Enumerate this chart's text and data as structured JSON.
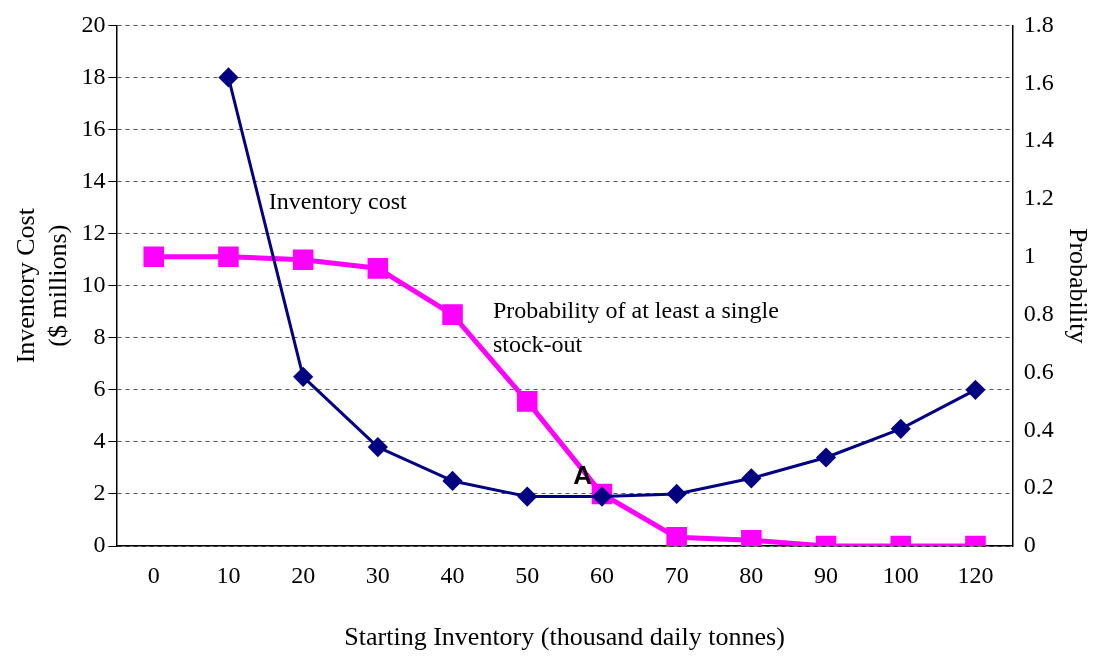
{
  "chart_data": {
    "type": "line",
    "xlabel": "Starting Inventory (thousand daily tonnes)",
    "ylabel": "Inventory Cost\n($ millions)",
    "y2label": "Probability",
    "categories": [
      "0",
      "10",
      "20",
      "30",
      "40",
      "50",
      "60",
      "70",
      "80",
      "90",
      "100",
      "120"
    ],
    "series": [
      {
        "name": "Inventory cost",
        "color": "#000080",
        "marker": "diamond",
        "values": [
          null,
          18,
          6.5,
          3.8,
          2.5,
          1.9,
          1.9,
          2.0,
          2.6,
          3.4,
          4.5,
          6.0
        ]
      },
      {
        "name": "Probability of at least a single stock-out",
        "color": "#ff00ff",
        "marker": "square",
        "axis": "y2",
        "values": [
          1,
          1,
          0.99,
          0.96,
          0.8,
          0.5,
          0.18,
          0.03,
          0.02,
          0,
          0,
          0
        ]
      }
    ],
    "ylim": [
      0,
      20
    ],
    "yticks": [
      0,
      2,
      4,
      6,
      8,
      10,
      12,
      14,
      16,
      18,
      20
    ],
    "y2lim": [
      0,
      1.8
    ],
    "y2ticks": [
      0,
      0.2,
      0.4,
      0.6,
      0.8,
      1,
      1.2,
      1.4,
      1.6,
      1.8
    ],
    "annotations": [
      {
        "text": "A",
        "x": "60",
        "y": 2.4
      }
    ],
    "grid": "y",
    "legend": false
  }
}
